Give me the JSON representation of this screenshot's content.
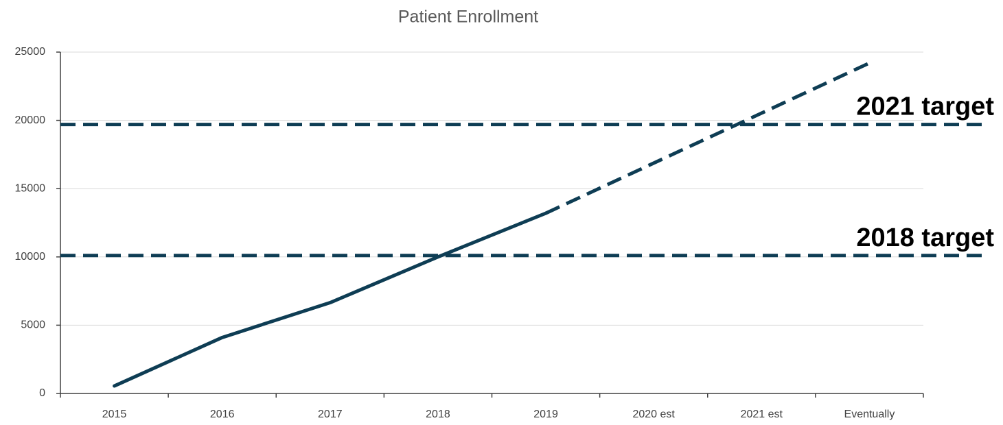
{
  "chart_data": {
    "type": "line",
    "title": "Patient Enrollment",
    "categories": [
      "2015",
      "2016",
      "2017",
      "2018",
      "2019",
      "2020 est",
      "2021 est",
      "Eventually"
    ],
    "series": [
      {
        "color": "#0e3d54",
        "dashed": false,
        "values": [
          550,
          4100,
          6650,
          10000,
          13200,
          null,
          null,
          null
        ]
      },
      {
        "color": "#0e3d54",
        "dashed": true,
        "values": [
          null,
          null,
          null,
          null,
          13200,
          16870,
          20530,
          24200
        ]
      }
    ],
    "reference_lines": [
      {
        "label": "2021 target",
        "value": 19700,
        "color": "#0e3d54"
      },
      {
        "label": "2018 target",
        "value": 10100,
        "color": "#0e3d54"
      }
    ],
    "ylim": [
      0,
      25000
    ],
    "yticks": [
      0,
      5000,
      10000,
      15000,
      20000,
      25000
    ],
    "grid": true
  }
}
